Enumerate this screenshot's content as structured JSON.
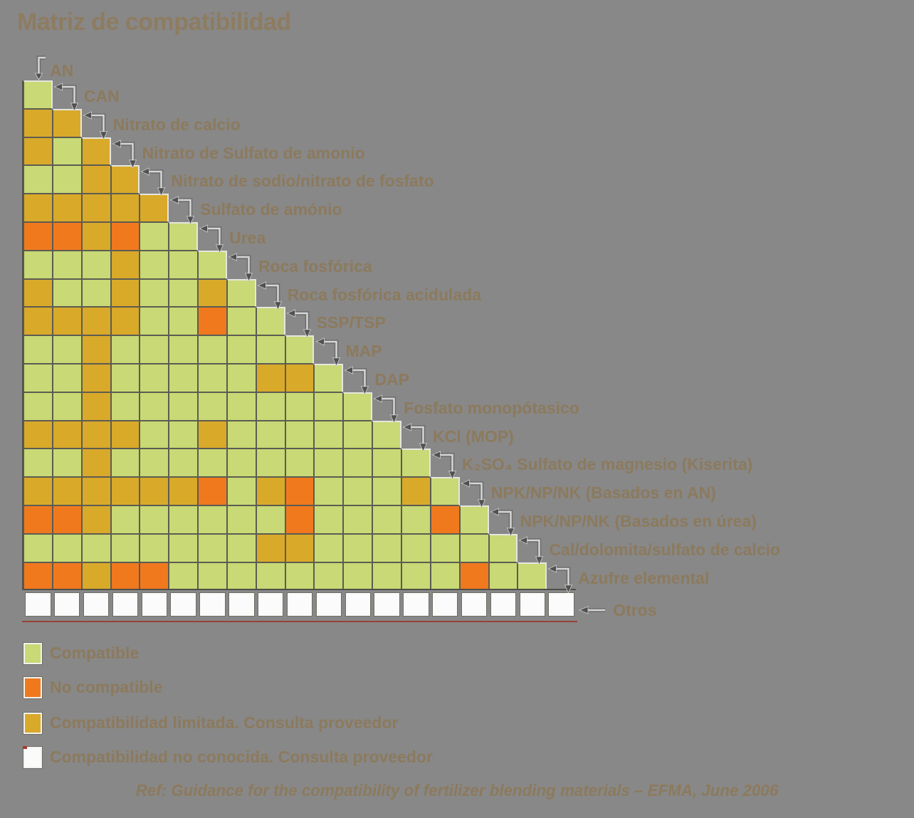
{
  "title": "Matriz de compatibilidad",
  "footer": "Ref: Guidance for the compatibility of fertilizer blending materials – EFMA, June 2006",
  "legend": [
    {
      "code": "G",
      "label": "Compatible"
    },
    {
      "code": "O",
      "label": "No compatible"
    },
    {
      "code": "Y",
      "label": "Compatibilidad limitada. Consulta proveedor"
    },
    {
      "code": "W",
      "label": "Compatibilidad no conocida. Consulta proveedor"
    }
  ],
  "colors": {
    "background": "#888888",
    "compatible_green": "#c8d975",
    "not_compatible_orange": "#f0791e",
    "limited_yellow": "#d9a92a",
    "unknown_white": "#fbfbfb",
    "grid_line": "#5c5c52",
    "label_text": "#8c7a5d",
    "title_text": "#8e7c61",
    "red_underline": "#993b30"
  },
  "chart_data": {
    "type": "heatmap",
    "title": "Matriz de compatibilidad",
    "shape": "lower-triangle",
    "cell_legend": {
      "G": "Compatible",
      "O": "No compatible",
      "Y": "Compatibilidad limitada. Consulta proveedor",
      "W": "Compatibilidad no conocida. Consulta proveedor"
    },
    "materials": [
      "AN",
      "CAN",
      "Nitrato de calcio",
      "Nitrato de Sulfato de amonio",
      "Nitrato de sodio/nitrato de fosfato",
      "Sulfato de amónio",
      "Urea",
      "Roca fosfórica",
      "Roca fosfórica acidulada",
      "SSP/TSP",
      "MAP",
      "DAP",
      "Fosfato monopótasico",
      "KCl (MOP)",
      "K₂SO₄ Sulfato de magnesio (Kiserita)",
      "NPK/NP/NK (Basados en AN)",
      "NPK/NP/NK (Basados en úrea)",
      "Cal/dolomita/sulfato de calcio",
      "Azufre elemental",
      "Otros"
    ],
    "rows": [
      {
        "material": "CAN",
        "cells": "G"
      },
      {
        "material": "Nitrato de calcio",
        "cells": "YY"
      },
      {
        "material": "Nitrato de Sulfato de amonio",
        "cells": "YGY"
      },
      {
        "material": "Nitrato de sodio/nitrato de fosfato",
        "cells": "GGYY"
      },
      {
        "material": "Sulfato de amónio",
        "cells": "YYYYY"
      },
      {
        "material": "Urea",
        "cells": "OOYOGG"
      },
      {
        "material": "Roca fosfórica",
        "cells": "GGGYGGG"
      },
      {
        "material": "Roca fosfórica acidulada",
        "cells": "YGGYGGYG"
      },
      {
        "material": "SSP/TSP",
        "cells": "YYYYGGOGG"
      },
      {
        "material": "MAP",
        "cells": "GGYGGGGGGG"
      },
      {
        "material": "DAP",
        "cells": "GGYGGGGGYYG"
      },
      {
        "material": "Fosfato monopótasico",
        "cells": "GGYGGGGGGGGG"
      },
      {
        "material": "KCl (MOP)",
        "cells": "YYYYGGYGGGGGG"
      },
      {
        "material": "K₂SO₄ Sulfato de magnesio (Kiserita)",
        "cells": "GGYGGGGGGGGGGG"
      },
      {
        "material": "NPK/NP/NK (Basados en AN)",
        "cells": "YYYYYYOGYOGGGYG"
      },
      {
        "material": "NPK/NP/NK (Basados en úrea)",
        "cells": "OOYGGGGGGOGGGGOG"
      },
      {
        "material": "Cal/dolomita/sulfato de calcio",
        "cells": "GGGGGGGGYYGGGGGGG"
      },
      {
        "material": "Azufre elemental",
        "cells": "OOYOOGGGGGGGGGGOGG"
      },
      {
        "material": "Otros",
        "cells": "WWWWWWWWWWWWWWWWWWW"
      }
    ]
  }
}
